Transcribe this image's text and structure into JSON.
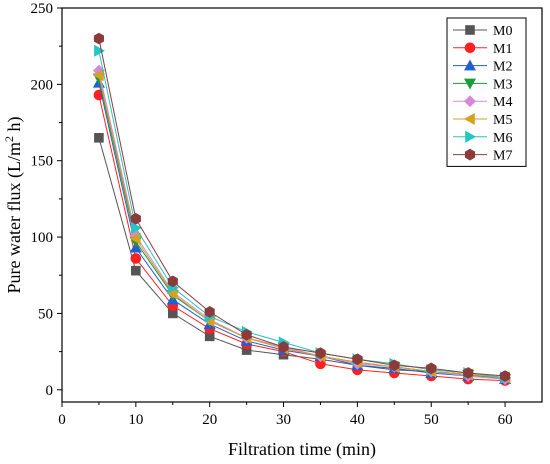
{
  "chart_data": {
    "type": "line",
    "title": "",
    "xlabel": "Filtration time (min)",
    "ylabel": "Pure water flux (L/m",
    "ylabel_sup": "2",
    "ylabel_end": " h)",
    "xlim": [
      0,
      65
    ],
    "ylim": [
      -8,
      250
    ],
    "xticks": [
      0,
      10,
      20,
      30,
      40,
      50,
      60
    ],
    "yticks": [
      0,
      50,
      100,
      150,
      200,
      250
    ],
    "grid": false,
    "legend_position": "top-right",
    "x": [
      5,
      10,
      15,
      20,
      25,
      30,
      35,
      40,
      45,
      50,
      55,
      60
    ],
    "series": [
      {
        "name": "M0",
        "color": "#555555",
        "marker": "square",
        "values": [
          165,
          78,
          50,
          35,
          26,
          23,
          20,
          16,
          13,
          12,
          10,
          7
        ]
      },
      {
        "name": "M1",
        "color": "#ff2020",
        "marker": "circle",
        "values": [
          193,
          86,
          55,
          40,
          30,
          25,
          17,
          13,
          11,
          9,
          7,
          6
        ]
      },
      {
        "name": "M2",
        "color": "#1f5fd6",
        "marker": "triangle-up",
        "values": [
          201,
          93,
          59,
          43,
          32,
          26,
          22,
          16,
          14,
          11,
          9,
          7
        ]
      },
      {
        "name": "M3",
        "color": "#1a9c3a",
        "marker": "triangle-down",
        "values": [
          204,
          97,
          62,
          45,
          34,
          28,
          22,
          18,
          15,
          12,
          10,
          7
        ]
      },
      {
        "name": "M4",
        "color": "#d58ad8",
        "marker": "diamond",
        "values": [
          209,
          101,
          64,
          46,
          34,
          28,
          22,
          17,
          15,
          12,
          9,
          7
        ]
      },
      {
        "name": "M5",
        "color": "#d7a020",
        "marker": "triangle-left",
        "values": [
          206,
          99,
          63,
          45,
          34,
          27,
          22,
          18,
          15,
          12,
          10,
          8
        ]
      },
      {
        "name": "M6",
        "color": "#22c6c6",
        "marker": "triangle-right",
        "values": [
          222,
          106,
          67,
          48,
          38,
          31,
          24,
          20,
          17,
          13,
          11,
          8
        ]
      },
      {
        "name": "M7",
        "color": "#8b3b3b",
        "marker": "hexagon",
        "values": [
          230,
          112,
          71,
          51,
          36,
          28,
          24,
          20,
          16,
          14,
          11,
          9
        ]
      }
    ]
  }
}
